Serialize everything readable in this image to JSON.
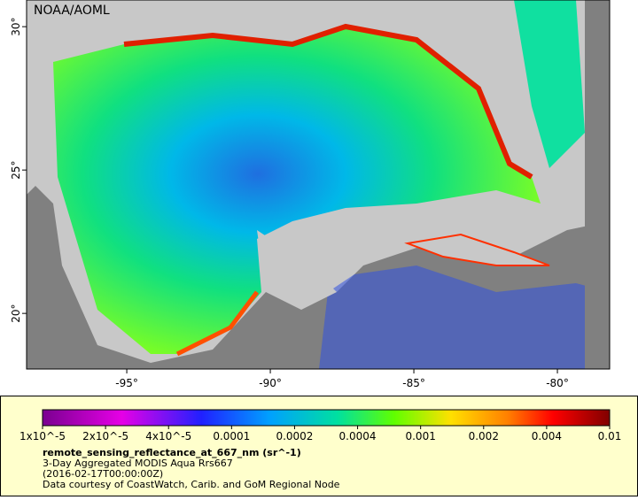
{
  "map": {
    "credit": "NOAA/AOML",
    "xlim": [
      -98.49,
      -78.18
    ],
    "ylim": [
      18.06,
      30.93
    ],
    "lon_ticks": [
      {
        "value": -95,
        "label": "-95°"
      },
      {
        "value": -90,
        "label": "-90°"
      },
      {
        "value": -85,
        "label": "-85°"
      },
      {
        "value": -80,
        "label": "-80°"
      }
    ],
    "lat_ticks": [
      {
        "value": 20,
        "label": "20°"
      },
      {
        "value": 25,
        "label": "25°"
      },
      {
        "value": 30,
        "label": "30°"
      }
    ]
  },
  "legend": {
    "colorbar_ticks": [
      {
        "value": 1e-05,
        "label": "1x10^-5"
      },
      {
        "value": 2e-05,
        "label": "2x10^-5"
      },
      {
        "value": 4e-05,
        "label": "4x10^-5"
      },
      0.0001,
      0.0002,
      0.0004,
      0.001,
      0.002,
      0.004,
      0.01
    ],
    "variable": "remote_sensing_reflectance_at_667_nm (sr^-1)",
    "description": "3-Day Aggregated MODIS Aqua Rrs667",
    "time": "(2016-02-17T00:00:00Z)",
    "source": "Data courtesy of CoastWatch, Carib. and GoM Regional Node"
  }
}
